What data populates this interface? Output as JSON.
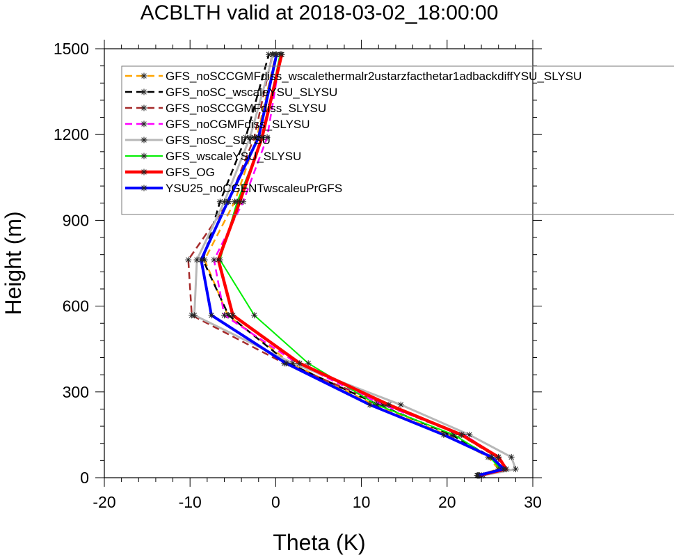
{
  "chart_data": {
    "type": "line",
    "title": "ACBLTH valid at 2018-03-02_18:00:00",
    "xlabel": "Theta (K)",
    "ylabel": "Height (m)",
    "xlim": [
      -20,
      30
    ],
    "ylim": [
      0,
      1500
    ],
    "xticks": [
      -20,
      -10,
      0,
      10,
      20,
      30
    ],
    "yticks": [
      0,
      300,
      600,
      900,
      1200,
      1500
    ],
    "grid": false,
    "legend_position": "top-right",
    "heights": [
      8,
      30,
      72,
      150,
      255,
      400,
      568,
      762,
      965,
      1190,
      1480
    ],
    "series": [
      {
        "name": "GFS_noSCCGMFdiss_wscalethermalr2ustarzfacthetar1adbackdiffYSU_SLYSU",
        "color": "#ffa500",
        "dash": "10,6",
        "width": 2.5,
        "x": [
          23.5,
          26.0,
          24.8,
          20.0,
          11.5,
          1.8,
          -5.6,
          -8.3,
          -4.8,
          -2.2,
          0.0
        ]
      },
      {
        "name": "GFS_noSC_wscaleYSU_SLYSU",
        "color": "#000000",
        "dash": "10,6",
        "width": 2.5,
        "x": [
          23.6,
          26.3,
          25.2,
          20.5,
          12.0,
          1.5,
          -5.5,
          -8.5,
          -6.5,
          -3.5,
          -0.8
        ]
      },
      {
        "name": "GFS_noSCCGMFdiss_SLYSU",
        "color": "#a52a2a",
        "dash": "10,6",
        "width": 2.5,
        "x": [
          23.8,
          26.6,
          25.8,
          21.5,
          12.8,
          1.0,
          -9.8,
          -10.2,
          -5.5,
          -2.5,
          -0.4
        ]
      },
      {
        "name": "GFS_noCGMFdiss_SLYSU",
        "color": "#ff00ff",
        "dash": "10,6",
        "width": 2.5,
        "x": [
          24.0,
          26.9,
          26.0,
          22.0,
          12.5,
          2.5,
          -6.0,
          -7.2,
          -3.8,
          -1.0,
          0.6
        ]
      },
      {
        "name": "GFS_noSC_SLYSU",
        "color": "#b8b8b8",
        "dash": "",
        "width": 3,
        "x": [
          24.2,
          28.0,
          27.5,
          22.6,
          14.6,
          2.0,
          -9.5,
          -9.2,
          -6.0,
          -3.0,
          -0.3
        ]
      },
      {
        "name": "GFS_wscaleYSU_SLYSU",
        "color": "#00ee00",
        "dash": "",
        "width": 2,
        "x": [
          23.6,
          26.2,
          25.0,
          20.8,
          11.8,
          3.8,
          -2.5,
          -6.5,
          -4.5,
          -1.5,
          0.5
        ]
      },
      {
        "name": "GFS_OG",
        "color": "#ff0000",
        "dash": "",
        "width": 4.5,
        "x": [
          23.7,
          26.9,
          26.0,
          21.7,
          13.2,
          2.8,
          -5.0,
          -6.7,
          -4.2,
          -1.6,
          0.7
        ]
      },
      {
        "name": "YSU25_noCGENTwscaleuPrGFS",
        "color": "#0000ff",
        "dash": "",
        "width": 4,
        "x": [
          23.6,
          26.6,
          25.2,
          19.6,
          11.0,
          1.2,
          -7.5,
          -8.7,
          -5.6,
          -2.0,
          0.1
        ]
      }
    ]
  }
}
